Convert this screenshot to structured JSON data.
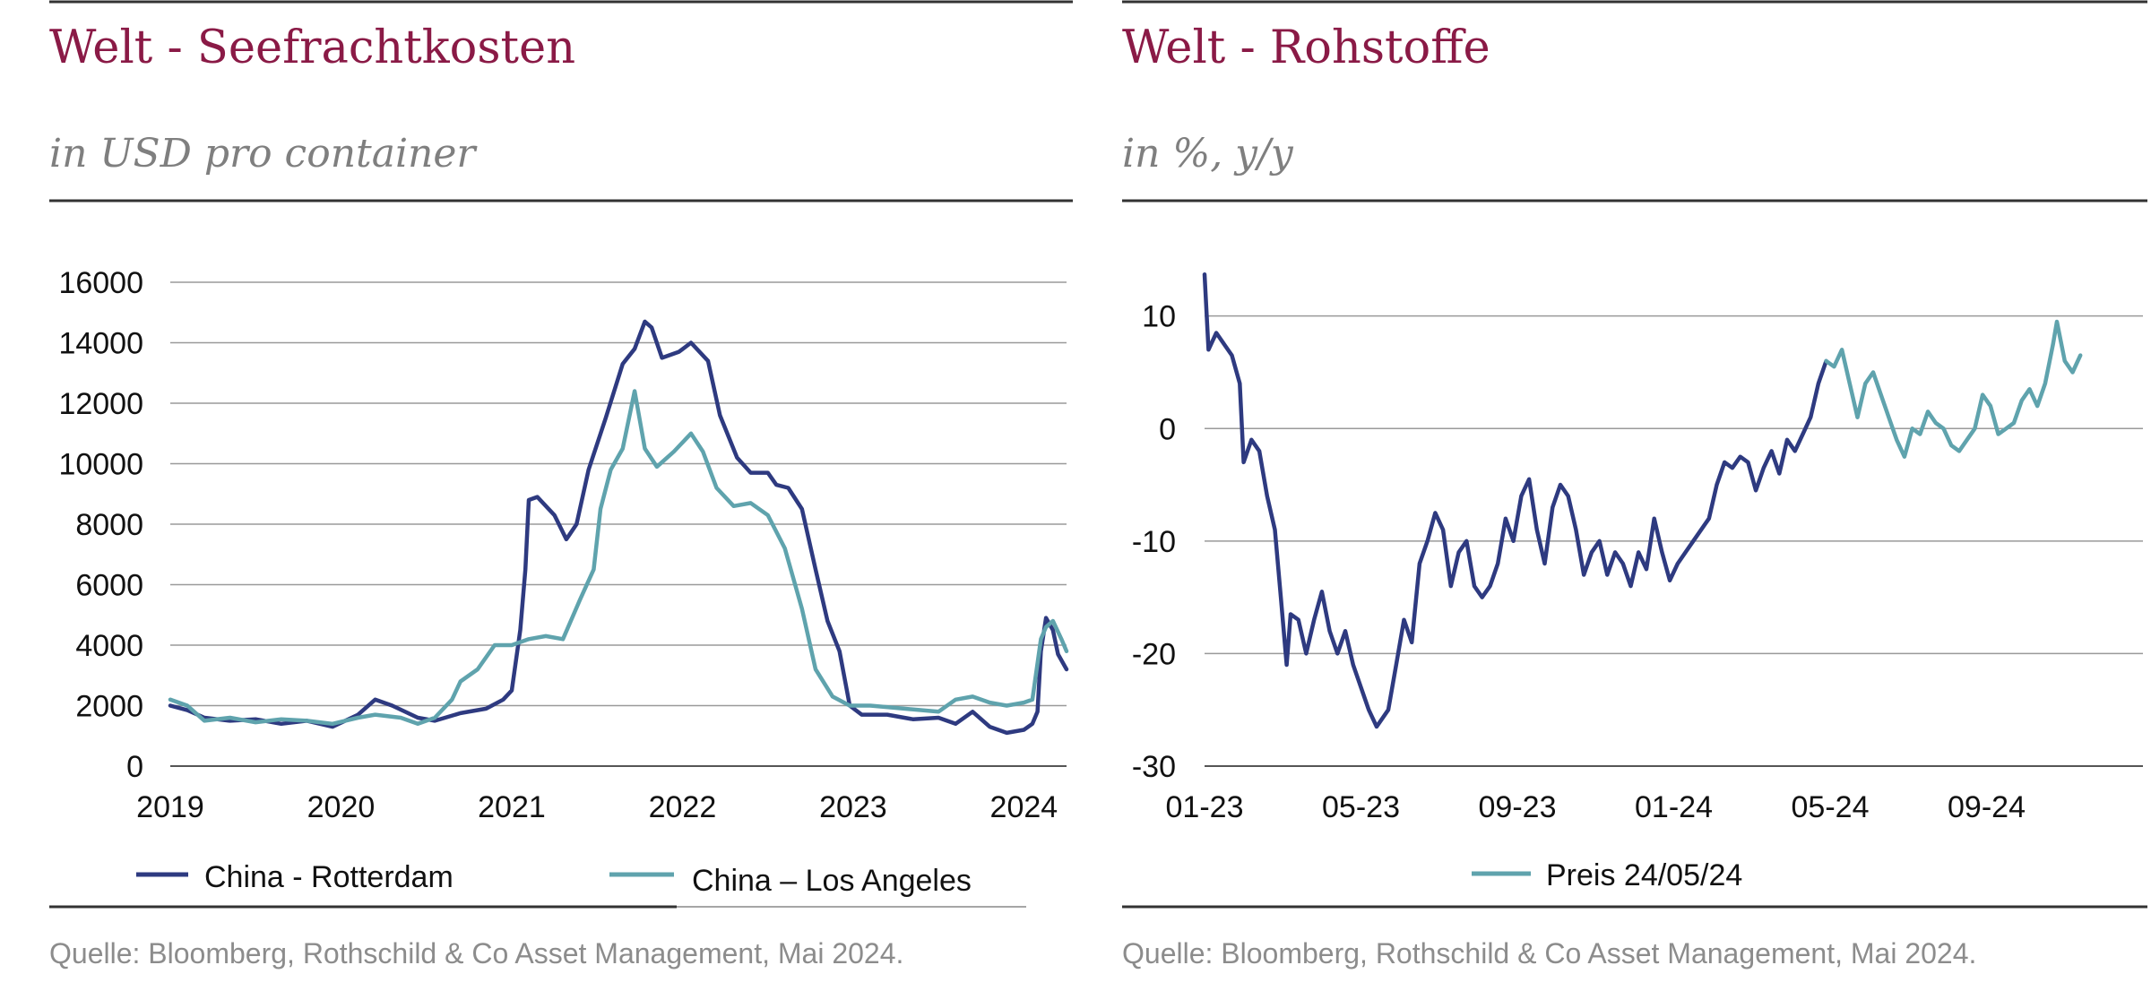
{
  "charts": [
    {
      "title": "Welt - Seefrachtkosten",
      "subtitle": "in USD pro container",
      "source": "Quelle: Bloomberg, Rothschild & Co Asset Management, Mai 2024."
    },
    {
      "title": "Welt - Rohstoffe",
      "subtitle": "in %, y/y",
      "source": "Quelle: Bloomberg, Rothschild & Co Asset Management, Mai 2024."
    }
  ],
  "chart_data": [
    {
      "type": "line",
      "title": "Welt - Seefrachtkosten",
      "subtitle": "in USD pro container",
      "xlabel": "",
      "ylabel": "",
      "xlim": [
        2019.0,
        2024.25
      ],
      "ylim": [
        0,
        16000
      ],
      "y_ticks": [
        0,
        2000,
        4000,
        6000,
        8000,
        10000,
        12000,
        14000,
        16000
      ],
      "x_ticks": [
        "2019",
        "2020",
        "2021",
        "2022",
        "2023",
        "2024"
      ],
      "x_tick_values": [
        2019,
        2020,
        2021,
        2022,
        2023,
        2024
      ],
      "grid": true,
      "legend_position": "bottom",
      "series": [
        {
          "name": "China - Rotterdam",
          "color": "#2e3a80",
          "points": [
            [
              2019.0,
              2000
            ],
            [
              2019.1,
              1850
            ],
            [
              2019.2,
              1600
            ],
            [
              2019.35,
              1500
            ],
            [
              2019.5,
              1550
            ],
            [
              2019.65,
              1400
            ],
            [
              2019.8,
              1500
            ],
            [
              2019.95,
              1300
            ],
            [
              2020.1,
              1700
            ],
            [
              2020.2,
              2200
            ],
            [
              2020.3,
              2000
            ],
            [
              2020.45,
              1600
            ],
            [
              2020.55,
              1500
            ],
            [
              2020.7,
              1750
            ],
            [
              2020.85,
              1900
            ],
            [
              2020.95,
              2200
            ],
            [
              2021.0,
              2500
            ],
            [
              2021.05,
              4500
            ],
            [
              2021.08,
              6500
            ],
            [
              2021.1,
              8800
            ],
            [
              2021.15,
              8900
            ],
            [
              2021.25,
              8300
            ],
            [
              2021.32,
              7500
            ],
            [
              2021.38,
              8000
            ],
            [
              2021.45,
              9800
            ],
            [
              2021.55,
              11500
            ],
            [
              2021.65,
              13300
            ],
            [
              2021.72,
              13800
            ],
            [
              2021.78,
              14700
            ],
            [
              2021.82,
              14500
            ],
            [
              2021.88,
              13500
            ],
            [
              2021.98,
              13700
            ],
            [
              2022.05,
              14000
            ],
            [
              2022.15,
              13400
            ],
            [
              2022.22,
              11600
            ],
            [
              2022.32,
              10200
            ],
            [
              2022.4,
              9700
            ],
            [
              2022.5,
              9700
            ],
            [
              2022.55,
              9300
            ],
            [
              2022.62,
              9200
            ],
            [
              2022.7,
              8500
            ],
            [
              2022.78,
              6500
            ],
            [
              2022.85,
              4800
            ],
            [
              2022.92,
              3800
            ],
            [
              2022.98,
              2000
            ],
            [
              2023.05,
              1700
            ],
            [
              2023.2,
              1700
            ],
            [
              2023.35,
              1550
            ],
            [
              2023.5,
              1600
            ],
            [
              2023.6,
              1400
            ],
            [
              2023.7,
              1800
            ],
            [
              2023.8,
              1300
            ],
            [
              2023.9,
              1100
            ],
            [
              2024.0,
              1200
            ],
            [
              2024.05,
              1400
            ],
            [
              2024.08,
              1800
            ],
            [
              2024.1,
              3800
            ],
            [
              2024.13,
              4900
            ],
            [
              2024.17,
              4500
            ],
            [
              2024.2,
              3700
            ],
            [
              2024.25,
              3200
            ]
          ]
        },
        {
          "name": "China – Los Angeles",
          "color": "#5fa3ad",
          "points": [
            [
              2019.0,
              2200
            ],
            [
              2019.1,
              2000
            ],
            [
              2019.2,
              1500
            ],
            [
              2019.35,
              1600
            ],
            [
              2019.5,
              1450
            ],
            [
              2019.65,
              1550
            ],
            [
              2019.8,
              1500
            ],
            [
              2019.95,
              1400
            ],
            [
              2020.1,
              1600
            ],
            [
              2020.2,
              1700
            ],
            [
              2020.35,
              1600
            ],
            [
              2020.45,
              1400
            ],
            [
              2020.55,
              1600
            ],
            [
              2020.65,
              2200
            ],
            [
              2020.7,
              2800
            ],
            [
              2020.8,
              3200
            ],
            [
              2020.9,
              4000
            ],
            [
              2021.0,
              4000
            ],
            [
              2021.1,
              4200
            ],
            [
              2021.2,
              4300
            ],
            [
              2021.3,
              4200
            ],
            [
              2021.4,
              5500
            ],
            [
              2021.48,
              6500
            ],
            [
              2021.52,
              8500
            ],
            [
              2021.58,
              9800
            ],
            [
              2021.65,
              10500
            ],
            [
              2021.72,
              12400
            ],
            [
              2021.78,
              10500
            ],
            [
              2021.85,
              9900
            ],
            [
              2021.95,
              10400
            ],
            [
              2022.05,
              11000
            ],
            [
              2022.12,
              10400
            ],
            [
              2022.2,
              9200
            ],
            [
              2022.3,
              8600
            ],
            [
              2022.4,
              8700
            ],
            [
              2022.5,
              8300
            ],
            [
              2022.6,
              7200
            ],
            [
              2022.7,
              5200
            ],
            [
              2022.78,
              3200
            ],
            [
              2022.88,
              2300
            ],
            [
              2022.98,
              2000
            ],
            [
              2023.1,
              2000
            ],
            [
              2023.3,
              1900
            ],
            [
              2023.5,
              1800
            ],
            [
              2023.6,
              2200
            ],
            [
              2023.7,
              2300
            ],
            [
              2023.8,
              2100
            ],
            [
              2023.9,
              2000
            ],
            [
              2024.0,
              2100
            ],
            [
              2024.05,
              2200
            ],
            [
              2024.1,
              4200
            ],
            [
              2024.13,
              4600
            ],
            [
              2024.17,
              4800
            ],
            [
              2024.22,
              4200
            ],
            [
              2024.25,
              3800
            ]
          ]
        }
      ]
    },
    {
      "type": "line",
      "title": "Welt - Rohstoffe",
      "subtitle": "in %, y/y",
      "xlabel": "",
      "ylabel": "",
      "xlim": [
        0,
        24
      ],
      "x_unit": "months since 01-23",
      "ylim": [
        -30,
        13
      ],
      "y_ticks": [
        -30,
        -20,
        -10,
        0,
        10
      ],
      "x_ticks": [
        "01-23",
        "05-23",
        "09-23",
        "01-24",
        "05-24",
        "09-24"
      ],
      "x_tick_values": [
        0,
        4,
        8,
        12,
        16,
        20
      ],
      "grid": true,
      "legend_position": "bottom",
      "series": [
        {
          "name": "",
          "color": "#2e3a80",
          "points": [
            [
              0.0,
              13.7
            ],
            [
              0.1,
              7
            ],
            [
              0.3,
              8.5
            ],
            [
              0.5,
              7.5
            ],
            [
              0.7,
              6.5
            ],
            [
              0.9,
              4
            ],
            [
              1.0,
              -3
            ],
            [
              1.2,
              -1
            ],
            [
              1.4,
              -2
            ],
            [
              1.6,
              -6
            ],
            [
              1.8,
              -9
            ],
            [
              1.95,
              -15
            ],
            [
              2.1,
              -21
            ],
            [
              2.2,
              -16.5
            ],
            [
              2.4,
              -17
            ],
            [
              2.6,
              -20
            ],
            [
              2.8,
              -17
            ],
            [
              3.0,
              -14.5
            ],
            [
              3.2,
              -18
            ],
            [
              3.4,
              -20
            ],
            [
              3.6,
              -18
            ],
            [
              3.8,
              -21
            ],
            [
              4.0,
              -23
            ],
            [
              4.2,
              -25
            ],
            [
              4.4,
              -26.5
            ],
            [
              4.7,
              -25
            ],
            [
              4.9,
              -21
            ],
            [
              5.1,
              -17
            ],
            [
              5.3,
              -19
            ],
            [
              5.5,
              -12
            ],
            [
              5.7,
              -10
            ],
            [
              5.9,
              -7.5
            ],
            [
              6.1,
              -9
            ],
            [
              6.3,
              -14
            ],
            [
              6.5,
              -11
            ],
            [
              6.7,
              -10
            ],
            [
              6.9,
              -14
            ],
            [
              7.1,
              -15
            ],
            [
              7.3,
              -14
            ],
            [
              7.5,
              -12
            ],
            [
              7.7,
              -8
            ],
            [
              7.9,
              -10
            ],
            [
              8.1,
              -6
            ],
            [
              8.3,
              -4.5
            ],
            [
              8.5,
              -9
            ],
            [
              8.7,
              -12
            ],
            [
              8.9,
              -7
            ],
            [
              9.1,
              -5
            ],
            [
              9.3,
              -6
            ],
            [
              9.5,
              -9
            ],
            [
              9.7,
              -13
            ],
            [
              9.9,
              -11
            ],
            [
              10.1,
              -10
            ],
            [
              10.3,
              -13
            ],
            [
              10.5,
              -11
            ],
            [
              10.7,
              -12
            ],
            [
              10.9,
              -14
            ],
            [
              11.1,
              -11
            ],
            [
              11.3,
              -12.5
            ],
            [
              11.5,
              -8
            ],
            [
              11.7,
              -11
            ],
            [
              11.9,
              -13.5
            ],
            [
              12.1,
              -12
            ],
            [
              12.3,
              -11
            ],
            [
              12.5,
              -10
            ],
            [
              12.7,
              -9
            ],
            [
              12.9,
              -8
            ],
            [
              13.1,
              -5
            ],
            [
              13.3,
              -3
            ],
            [
              13.5,
              -3.5
            ],
            [
              13.7,
              -2.5
            ],
            [
              13.9,
              -3
            ],
            [
              14.1,
              -5.5
            ],
            [
              14.3,
              -3.5
            ],
            [
              14.5,
              -2
            ],
            [
              14.7,
              -4
            ],
            [
              14.9,
              -1
            ],
            [
              15.1,
              -2
            ],
            [
              15.3,
              -0.5
            ],
            [
              15.5,
              1
            ],
            [
              15.7,
              4
            ],
            [
              15.9,
              6
            ]
          ]
        },
        {
          "name": "Preis 24/05/24",
          "color": "#5fa3ad",
          "points": [
            [
              15.9,
              6
            ],
            [
              16.1,
              5.5
            ],
            [
              16.3,
              7
            ],
            [
              16.5,
              4
            ],
            [
              16.7,
              1
            ],
            [
              16.9,
              4
            ],
            [
              17.1,
              5
            ],
            [
              17.3,
              3
            ],
            [
              17.5,
              1
            ],
            [
              17.7,
              -1
            ],
            [
              17.9,
              -2.5
            ],
            [
              18.1,
              0
            ],
            [
              18.3,
              -0.5
            ],
            [
              18.5,
              1.5
            ],
            [
              18.7,
              0.5
            ],
            [
              18.9,
              0
            ],
            [
              19.1,
              -1.5
            ],
            [
              19.3,
              -2
            ],
            [
              19.5,
              -1
            ],
            [
              19.7,
              0
            ],
            [
              19.9,
              3
            ],
            [
              20.1,
              2
            ],
            [
              20.3,
              -0.5
            ],
            [
              20.5,
              0
            ],
            [
              20.7,
              0.5
            ],
            [
              20.9,
              2.5
            ],
            [
              21.1,
              3.5
            ],
            [
              21.3,
              2
            ],
            [
              21.5,
              4
            ],
            [
              21.7,
              7.5
            ],
            [
              21.8,
              9.5
            ],
            [
              22.0,
              6
            ],
            [
              22.2,
              5
            ],
            [
              22.4,
              6.5
            ]
          ]
        }
      ]
    }
  ],
  "legend": [
    {
      "label": "China - Rotterdam",
      "color": "#2e3a80"
    },
    {
      "label": "China – Los Angeles",
      "color": "#5fa3ad"
    },
    {
      "label": "Preis 24/05/24",
      "color": "#5fa3ad"
    }
  ]
}
